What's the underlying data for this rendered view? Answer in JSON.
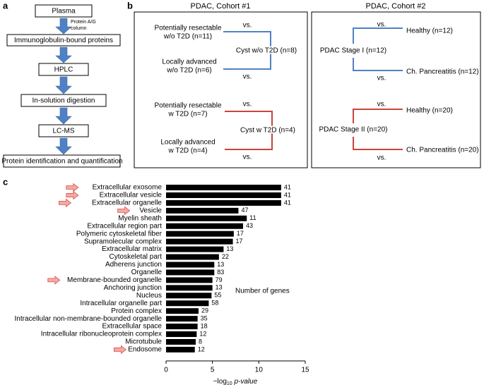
{
  "panel_a": {
    "label": "a",
    "steps": [
      "Plasma",
      "Immunoglobulin-bound proteins",
      "HPLC",
      "In-solution digestion",
      "LC-MS",
      "Protein identification and quantification"
    ],
    "note": [
      "Protein A/G",
      "column"
    ]
  },
  "panel_b": {
    "label": "b",
    "cohort1": {
      "title": "PDAC, Cohort #1",
      "blue": {
        "top": [
          "Potentially resectable",
          "w/o T2D (n=11)"
        ],
        "bottom": [
          "Locally advanced",
          "w/o T2D (n=6)"
        ],
        "target": "Cyst w/o T2D (n=8)",
        "vs": [
          "vs.",
          "vs."
        ]
      },
      "red": {
        "top": [
          "Potentially resectable",
          "w T2D (n=7)"
        ],
        "bottom": [
          "Locally advanced",
          "w T2D (n=4)"
        ],
        "target": "Cyst w T2D (n=4)",
        "vs": [
          "vs.",
          "vs."
        ]
      }
    },
    "cohort2": {
      "title": "PDAC, Cohort #2",
      "blue": {
        "source": "PDAC Stage I (n=12)",
        "top": "Healthy (n=12)",
        "bottom": "Ch. Pancreatitis (n=12)",
        "vs": [
          "vs.",
          "vs."
        ]
      },
      "red": {
        "source": "PDAC Stage II (n=20)",
        "top": "Healthy (n=20)",
        "bottom": "Ch. Pancreatitis (n=20)",
        "vs": [
          "vs.",
          "vs."
        ]
      }
    }
  },
  "chart_data": {
    "type": "barh",
    "label": "c",
    "categories": [
      "Extracellular exosome",
      "Extracellular vesicle",
      "Extracellular organelle",
      "Vesicle",
      "Myelin sheath",
      "Extracellular region part",
      "Polymeric cytoskeletal fiber",
      "Supramolecular complex",
      "Extracellular matrix",
      "Cytoskeletal part",
      "Adherens junction",
      "Organelle",
      "Membrane-bounded organelle",
      "Anchoring junction",
      "Nucleus",
      "Intracellular organelle part",
      "Protein complex",
      "Intracellular non-membrane-bounded organelle",
      "Extracellular space",
      "Intracellular ribonucleoprotein complex",
      "Microtubule",
      "Endosome"
    ],
    "values": [
      12.4,
      12.4,
      12.4,
      7.8,
      8.7,
      8.3,
      7.3,
      7.2,
      6.2,
      5.7,
      5.2,
      5.2,
      5.0,
      5.0,
      4.9,
      4.6,
      3.5,
      3.4,
      3.4,
      3.3,
      3.2,
      3.1
    ],
    "gene_counts": [
      41,
      41,
      41,
      47,
      11,
      43,
      17,
      17,
      13,
      22,
      13,
      83,
      79,
      13,
      55,
      58,
      29,
      35,
      18,
      12,
      8,
      12
    ],
    "gene_counts_label": "Number of genes",
    "highlighted": [
      true,
      true,
      true,
      true,
      false,
      false,
      false,
      false,
      false,
      false,
      false,
      false,
      true,
      false,
      false,
      false,
      false,
      false,
      false,
      false,
      false,
      true
    ],
    "color": "#000000",
    "highlight_color": "#f4a9a3",
    "xlim": [
      0,
      15
    ],
    "xticks": [
      0,
      5,
      10,
      15
    ],
    "x_label": [
      "−log",
      "10",
      " p-value"
    ]
  }
}
